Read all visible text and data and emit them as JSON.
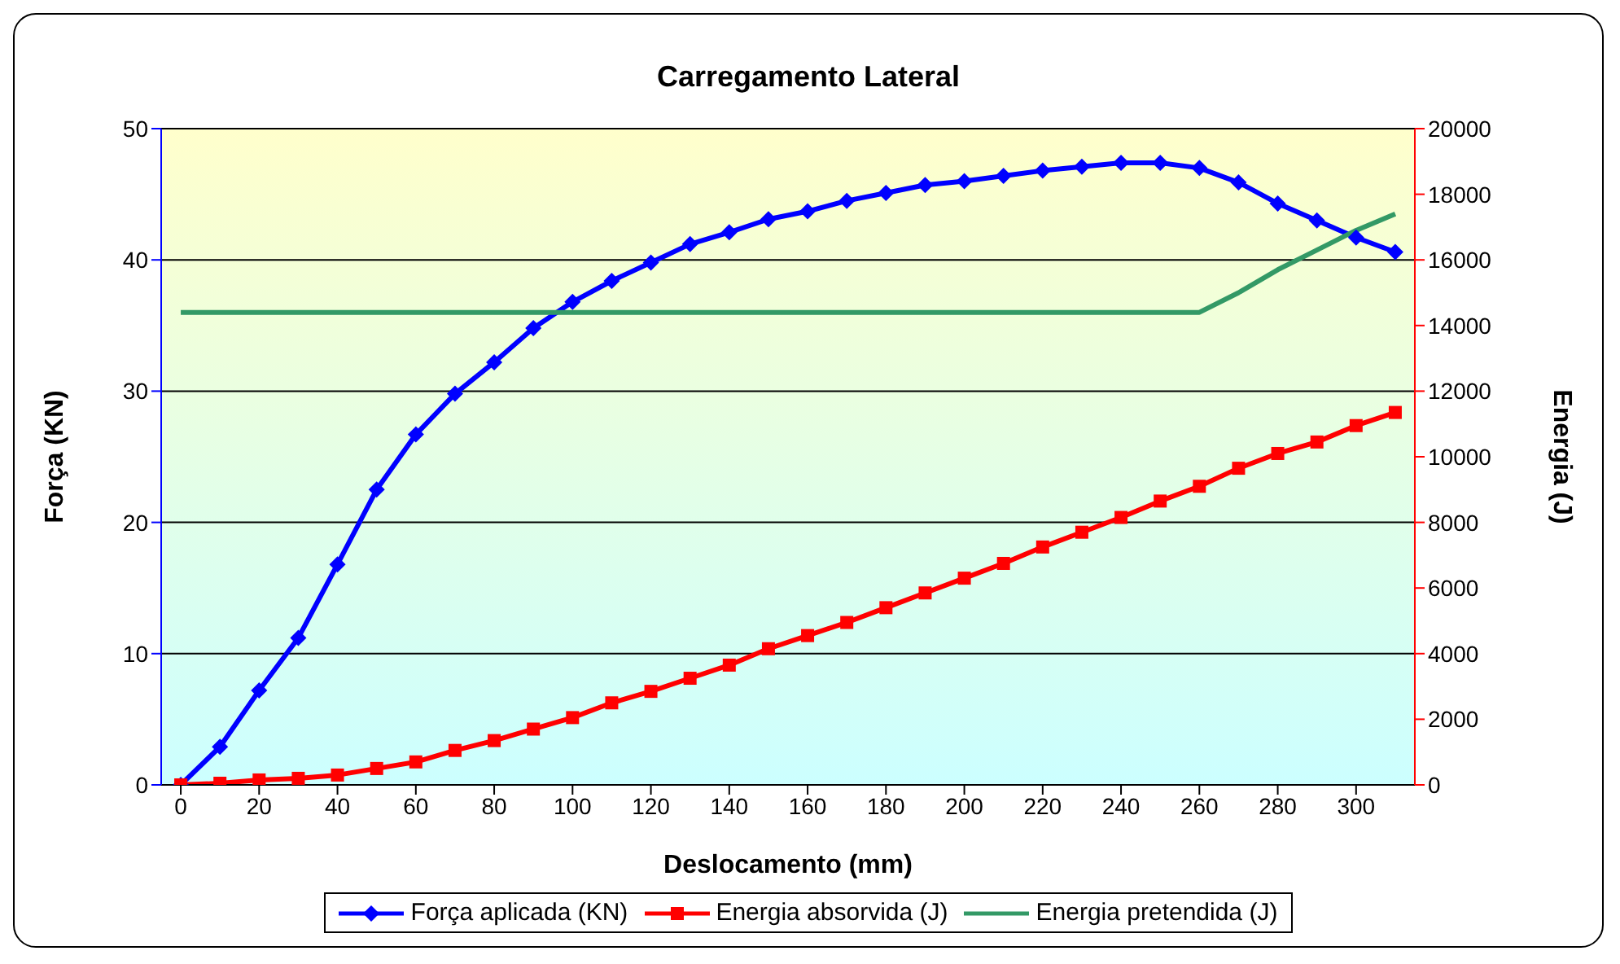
{
  "chart_data": {
    "type": "line",
    "title": "Carregamento Lateral",
    "xlabel": "Deslocamento (mm)",
    "ylabel": "Força (KN)",
    "y2label": "Energia (J)",
    "x": [
      0,
      10,
      20,
      30,
      40,
      50,
      60,
      70,
      80,
      90,
      100,
      110,
      120,
      130,
      140,
      150,
      160,
      170,
      180,
      190,
      200,
      210,
      220,
      230,
      240,
      250,
      260,
      270,
      280,
      290,
      300,
      310
    ],
    "xlim": [
      -5,
      315
    ],
    "xticks": [
      0,
      20,
      40,
      60,
      80,
      100,
      120,
      140,
      160,
      180,
      200,
      220,
      240,
      260,
      280,
      300
    ],
    "ylim": [
      0,
      50
    ],
    "yticks": [
      0,
      10,
      20,
      30,
      40,
      50
    ],
    "y2lim": [
      0,
      20000
    ],
    "y2ticks": [
      0,
      2000,
      4000,
      6000,
      8000,
      10000,
      12000,
      14000,
      16000,
      18000,
      20000
    ],
    "grid": "y",
    "legend": "bottom",
    "line_style": "solid",
    "series": [
      {
        "name": "Força aplicada (KN)",
        "color": "#0000ff",
        "marker": "diamond",
        "values": [
          0,
          2.9,
          7.2,
          11.2,
          16.8,
          22.5,
          26.7,
          29.8,
          32.2,
          34.8,
          36.8,
          38.4,
          39.8,
          41.2,
          42.1,
          43.1,
          43.7,
          44.5,
          45.1,
          45.7,
          46.0,
          46.4,
          46.8,
          47.1,
          47.4,
          47.4,
          47.0,
          45.9,
          44.3,
          43.0,
          41.7,
          40.6
        ]
      },
      {
        "name": "Energia absorvida (J)",
        "color": "#ff0000",
        "marker": "square",
        "axis": "y2",
        "values": [
          0,
          50,
          150,
          200,
          300,
          500,
          700,
          1050,
          1350,
          1700,
          2050,
          2500,
          2850,
          3250,
          3650,
          4150,
          4550,
          4950,
          5400,
          5850,
          6300,
          6750,
          7250,
          7700,
          8150,
          8650,
          9100,
          9650,
          10100,
          10450,
          10950,
          11350
        ]
      },
      {
        "name": "Energia pretendida (J)",
        "color": "#339966",
        "marker": "none",
        "axis": "y2",
        "values": [
          14400,
          14400,
          14400,
          14400,
          14400,
          14400,
          14400,
          14400,
          14400,
          14400,
          14400,
          14400,
          14400,
          14400,
          14400,
          14400,
          14400,
          14400,
          14400,
          14400,
          14400,
          14400,
          14400,
          14400,
          14400,
          14400,
          14400,
          15000,
          15700,
          16300,
          16900,
          17400
        ]
      }
    ]
  }
}
